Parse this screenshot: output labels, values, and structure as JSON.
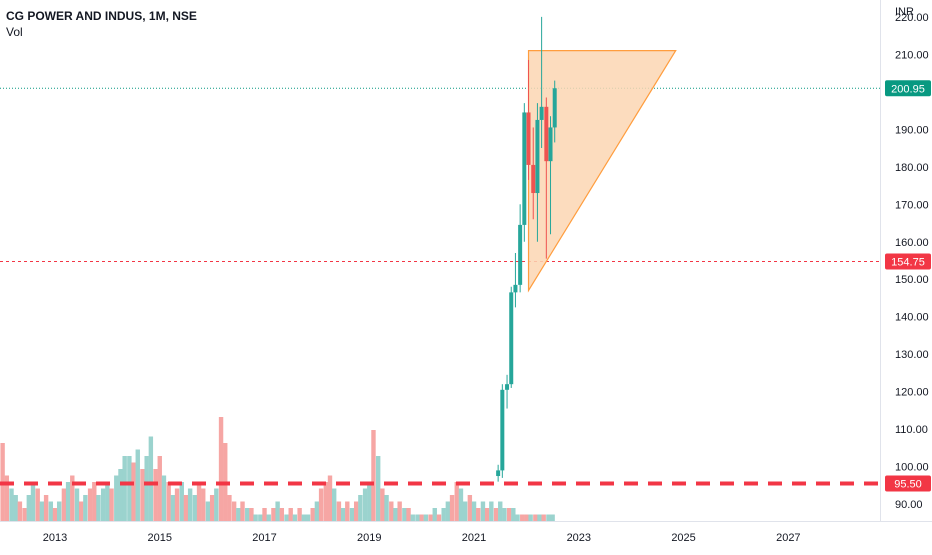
{
  "header": {
    "title": "CG POWER AND INDUS, 1M, NSE",
    "volume_label": "Vol",
    "currency": "INR"
  },
  "colors": {
    "up": "#26a69a",
    "down": "#ef5350",
    "vol_up": "#9bd3ce",
    "vol_down": "#f6a6a4",
    "last_price": "#089981",
    "support": "#f23645",
    "triangle_fill": "#fbd6b3",
    "triangle_stroke": "#ff9d3e"
  },
  "chart_data": {
    "type": "candlestick",
    "title": "CG POWER AND INDUS, 1M, NSE",
    "y_unit": "INR",
    "y_ticks": [
      90,
      100,
      110,
      120,
      130,
      140,
      150,
      160,
      170,
      180,
      190,
      200,
      210,
      220
    ],
    "y_tick_labels": [
      "90.00",
      "100.00",
      "110.00",
      "120.00",
      "130.00",
      "140.00",
      "150.00",
      "160.00",
      "170.00",
      "180.00",
      "190.00",
      "200.00",
      "210.00",
      "220.00"
    ],
    "x_ticks": [
      2013,
      2015,
      2017,
      2019,
      2021,
      2023,
      2025,
      2027
    ],
    "x_tick_labels": [
      "2013",
      "2015",
      "2017",
      "2019",
      "2021",
      "2023",
      "2025",
      "2027"
    ],
    "x_range": [
      2011.95,
      2028.75
    ],
    "y_range": [
      85.5,
      224.5
    ],
    "grid": false,
    "candles": [
      {
        "t": 2021.46,
        "o": 97.5,
        "h": 100.5,
        "l": 96.0,
        "c": 99.0
      },
      {
        "t": 2021.54,
        "o": 99.0,
        "h": 122.0,
        "l": 97.0,
        "c": 120.5
      },
      {
        "t": 2021.63,
        "o": 120.5,
        "h": 124.5,
        "l": 115.5,
        "c": 122.0
      },
      {
        "t": 2021.71,
        "o": 122.0,
        "h": 148.0,
        "l": 121.0,
        "c": 146.5
      },
      {
        "t": 2021.79,
        "o": 146.5,
        "h": 157.0,
        "l": 142.5,
        "c": 148.5
      },
      {
        "t": 2021.88,
        "o": 148.5,
        "h": 170.0,
        "l": 146.5,
        "c": 164.5
      },
      {
        "t": 2021.96,
        "o": 164.5,
        "h": 197.0,
        "l": 160.0,
        "c": 194.5
      },
      {
        "t": 2022.04,
        "o": 194.5,
        "h": 208.5,
        "l": 176.5,
        "c": 180.5
      },
      {
        "t": 2022.13,
        "o": 180.5,
        "h": 190.5,
        "l": 166.0,
        "c": 173.0
      },
      {
        "t": 2022.21,
        "o": 173.0,
        "h": 197.0,
        "l": 160.0,
        "c": 192.5
      },
      {
        "t": 2022.29,
        "o": 192.5,
        "h": 220.0,
        "l": 185.0,
        "c": 196.0
      },
      {
        "t": 2022.38,
        "o": 196.0,
        "h": 198.5,
        "l": 155.5,
        "c": 181.5
      },
      {
        "t": 2022.46,
        "o": 181.5,
        "h": 193.5,
        "l": 162.0,
        "c": 190.5
      },
      {
        "t": 2022.54,
        "o": 190.5,
        "h": 203.0,
        "l": 186.5,
        "c": 200.95
      }
    ],
    "volume_scale_max": 20,
    "volume": [
      {
        "t": 2012.0,
        "v": 12,
        "up": false
      },
      {
        "t": 2012.08,
        "v": 7,
        "up": false
      },
      {
        "t": 2012.17,
        "v": 5,
        "up": true
      },
      {
        "t": 2012.25,
        "v": 4,
        "up": true
      },
      {
        "t": 2012.33,
        "v": 3,
        "up": false
      },
      {
        "t": 2012.42,
        "v": 2,
        "up": false
      },
      {
        "t": 2012.5,
        "v": 4,
        "up": true
      },
      {
        "t": 2012.58,
        "v": 6,
        "up": true
      },
      {
        "t": 2012.67,
        "v": 5,
        "up": false
      },
      {
        "t": 2012.75,
        "v": 3,
        "up": true
      },
      {
        "t": 2012.83,
        "v": 4,
        "up": false
      },
      {
        "t": 2012.92,
        "v": 3,
        "up": true
      },
      {
        "t": 2013.0,
        "v": 2,
        "up": false
      },
      {
        "t": 2013.08,
        "v": 3,
        "up": true
      },
      {
        "t": 2013.17,
        "v": 5,
        "up": false
      },
      {
        "t": 2013.25,
        "v": 6,
        "up": true
      },
      {
        "t": 2013.33,
        "v": 7,
        "up": false
      },
      {
        "t": 2013.42,
        "v": 5,
        "up": true
      },
      {
        "t": 2013.5,
        "v": 3,
        "up": false
      },
      {
        "t": 2013.58,
        "v": 4,
        "up": true
      },
      {
        "t": 2013.67,
        "v": 5,
        "up": false
      },
      {
        "t": 2013.75,
        "v": 6,
        "up": false
      },
      {
        "t": 2013.83,
        "v": 4,
        "up": true
      },
      {
        "t": 2013.92,
        "v": 5,
        "up": true
      },
      {
        "t": 2014.0,
        "v": 6,
        "up": true
      },
      {
        "t": 2014.08,
        "v": 5,
        "up": false
      },
      {
        "t": 2014.17,
        "v": 7,
        "up": true
      },
      {
        "t": 2014.25,
        "v": 8,
        "up": true
      },
      {
        "t": 2014.33,
        "v": 10,
        "up": true
      },
      {
        "t": 2014.42,
        "v": 10,
        "up": true
      },
      {
        "t": 2014.5,
        "v": 9,
        "up": false
      },
      {
        "t": 2014.58,
        "v": 11,
        "up": true
      },
      {
        "t": 2014.67,
        "v": 8,
        "up": false
      },
      {
        "t": 2014.75,
        "v": 10,
        "up": true
      },
      {
        "t": 2014.83,
        "v": 13,
        "up": true
      },
      {
        "t": 2014.92,
        "v": 8,
        "up": false
      },
      {
        "t": 2015.0,
        "v": 10,
        "up": false
      },
      {
        "t": 2015.08,
        "v": 7,
        "up": true
      },
      {
        "t": 2015.17,
        "v": 6,
        "up": false
      },
      {
        "t": 2015.25,
        "v": 4,
        "up": true
      },
      {
        "t": 2015.33,
        "v": 5,
        "up": false
      },
      {
        "t": 2015.42,
        "v": 6,
        "up": true
      },
      {
        "t": 2015.5,
        "v": 4,
        "up": false
      },
      {
        "t": 2015.58,
        "v": 5,
        "up": true
      },
      {
        "t": 2015.67,
        "v": 4,
        "up": true
      },
      {
        "t": 2015.75,
        "v": 6,
        "up": false
      },
      {
        "t": 2015.83,
        "v": 5,
        "up": false
      },
      {
        "t": 2015.92,
        "v": 3,
        "up": true
      },
      {
        "t": 2016.0,
        "v": 4,
        "up": false
      },
      {
        "t": 2016.08,
        "v": 5,
        "up": true
      },
      {
        "t": 2016.17,
        "v": 16,
        "up": false
      },
      {
        "t": 2016.25,
        "v": 12,
        "up": false
      },
      {
        "t": 2016.33,
        "v": 4,
        "up": false
      },
      {
        "t": 2016.42,
        "v": 3,
        "up": false
      },
      {
        "t": 2016.5,
        "v": 2,
        "up": true
      },
      {
        "t": 2016.58,
        "v": 3,
        "up": false
      },
      {
        "t": 2016.67,
        "v": 2,
        "up": true
      },
      {
        "t": 2016.75,
        "v": 2,
        "up": false
      },
      {
        "t": 2016.83,
        "v": 1,
        "up": true
      },
      {
        "t": 2016.92,
        "v": 1,
        "up": true
      },
      {
        "t": 2017.0,
        "v": 2,
        "up": false
      },
      {
        "t": 2017.08,
        "v": 1,
        "up": true
      },
      {
        "t": 2017.17,
        "v": 2,
        "up": false
      },
      {
        "t": 2017.25,
        "v": 3,
        "up": true
      },
      {
        "t": 2017.33,
        "v": 2,
        "up": false
      },
      {
        "t": 2017.42,
        "v": 1,
        "up": true
      },
      {
        "t": 2017.5,
        "v": 2,
        "up": false
      },
      {
        "t": 2017.58,
        "v": 1,
        "up": true
      },
      {
        "t": 2017.67,
        "v": 2,
        "up": false
      },
      {
        "t": 2017.75,
        "v": 1,
        "up": true
      },
      {
        "t": 2017.83,
        "v": 1,
        "up": true
      },
      {
        "t": 2017.92,
        "v": 2,
        "up": false
      },
      {
        "t": 2018.0,
        "v": 3,
        "up": true
      },
      {
        "t": 2018.08,
        "v": 5,
        "up": false
      },
      {
        "t": 2018.17,
        "v": 6,
        "up": false
      },
      {
        "t": 2018.25,
        "v": 7,
        "up": false
      },
      {
        "t": 2018.33,
        "v": 5,
        "up": true
      },
      {
        "t": 2018.42,
        "v": 3,
        "up": false
      },
      {
        "t": 2018.5,
        "v": 2,
        "up": true
      },
      {
        "t": 2018.58,
        "v": 3,
        "up": false
      },
      {
        "t": 2018.67,
        "v": 2,
        "up": true
      },
      {
        "t": 2018.75,
        "v": 3,
        "up": false
      },
      {
        "t": 2018.83,
        "v": 4,
        "up": true
      },
      {
        "t": 2018.92,
        "v": 5,
        "up": true
      },
      {
        "t": 2019.0,
        "v": 6,
        "up": true
      },
      {
        "t": 2019.08,
        "v": 14,
        "up": false
      },
      {
        "t": 2019.17,
        "v": 10,
        "up": true
      },
      {
        "t": 2019.25,
        "v": 5,
        "up": false
      },
      {
        "t": 2019.33,
        "v": 4,
        "up": true
      },
      {
        "t": 2019.42,
        "v": 3,
        "up": false
      },
      {
        "t": 2019.5,
        "v": 2,
        "up": true
      },
      {
        "t": 2019.58,
        "v": 3,
        "up": false
      },
      {
        "t": 2019.67,
        "v": 2,
        "up": true
      },
      {
        "t": 2019.75,
        "v": 2,
        "up": false
      },
      {
        "t": 2019.83,
        "v": 1,
        "up": true
      },
      {
        "t": 2019.92,
        "v": 1,
        "up": true
      },
      {
        "t": 2020.0,
        "v": 1,
        "up": false
      },
      {
        "t": 2020.08,
        "v": 1,
        "up": true
      },
      {
        "t": 2020.17,
        "v": 1,
        "up": false
      },
      {
        "t": 2020.25,
        "v": 2,
        "up": true
      },
      {
        "t": 2020.33,
        "v": 1,
        "up": false
      },
      {
        "t": 2020.42,
        "v": 2,
        "up": true
      },
      {
        "t": 2020.5,
        "v": 3,
        "up": true
      },
      {
        "t": 2020.58,
        "v": 4,
        "up": false
      },
      {
        "t": 2020.67,
        "v": 6,
        "up": false
      },
      {
        "t": 2020.75,
        "v": 5,
        "up": true
      },
      {
        "t": 2020.83,
        "v": 3,
        "up": true
      },
      {
        "t": 2020.92,
        "v": 4,
        "up": false
      },
      {
        "t": 2021.0,
        "v": 3,
        "up": true
      },
      {
        "t": 2021.08,
        "v": 2,
        "up": false
      },
      {
        "t": 2021.17,
        "v": 3,
        "up": true
      },
      {
        "t": 2021.25,
        "v": 2,
        "up": false
      },
      {
        "t": 2021.33,
        "v": 3,
        "up": true
      },
      {
        "t": 2021.42,
        "v": 2,
        "up": false
      },
      {
        "t": 2021.5,
        "v": 3,
        "up": true
      },
      {
        "t": 2021.58,
        "v": 2,
        "up": true
      },
      {
        "t": 2021.67,
        "v": 2,
        "up": false
      },
      {
        "t": 2021.75,
        "v": 2,
        "up": true
      },
      {
        "t": 2021.83,
        "v": 1,
        "up": true
      },
      {
        "t": 2021.92,
        "v": 1,
        "up": false
      },
      {
        "t": 2022.0,
        "v": 1,
        "up": false
      },
      {
        "t": 2022.08,
        "v": 1,
        "up": true
      },
      {
        "t": 2022.17,
        "v": 1,
        "up": false
      },
      {
        "t": 2022.25,
        "v": 1,
        "up": true
      },
      {
        "t": 2022.33,
        "v": 1,
        "up": false
      },
      {
        "t": 2022.42,
        "v": 1,
        "up": true
      },
      {
        "t": 2022.5,
        "v": 1,
        "up": true
      }
    ],
    "triangle": {
      "top_left": {
        "t": 2022.04,
        "y": 211
      },
      "top_right": {
        "t": 2024.85,
        "y": 211
      },
      "bottom": {
        "t": 2022.04,
        "y": 147
      }
    },
    "horizontal_lines": [
      {
        "name": "last-price",
        "value": 200.95,
        "label": "200.95",
        "style": "dotted"
      },
      {
        "name": "resistance",
        "value": 154.75,
        "label": "154.75",
        "style": "dashed-thin"
      },
      {
        "name": "support",
        "value": 95.5,
        "label": "95.50",
        "style": "dashed-thick"
      }
    ]
  }
}
